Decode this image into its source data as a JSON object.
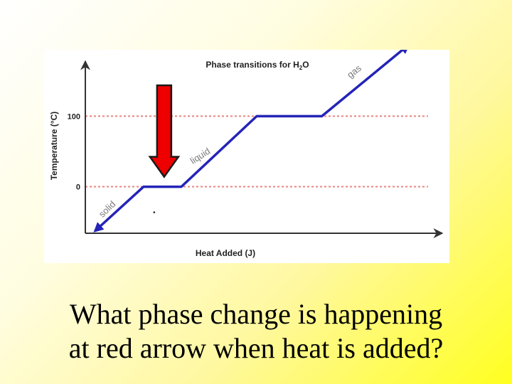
{
  "chart_data": {
    "type": "line",
    "title_parts": {
      "prefix": "Phase transitions for H",
      "sub": "2",
      "suffix": "O"
    },
    "xlabel": "Heat Added (J)",
    "ylabel": "Temperature (°C)",
    "yticks": [
      100,
      0
    ],
    "reference_lines": [
      100,
      0
    ],
    "xlim": [
      0,
      100
    ],
    "ylim": [
      -66,
      170
    ],
    "series": [
      {
        "x": [
          3,
          17,
          28,
          50,
          69,
          94
        ],
        "y": [
          -62,
          0,
          0,
          100,
          100,
          200
        ]
      }
    ],
    "phase_labels": [
      {
        "text": "solid",
        "x": 7,
        "y": -35,
        "angle": -44
      },
      {
        "text": "liquid",
        "x": 34,
        "y": 40,
        "angle": -33
      },
      {
        "text": "gas",
        "x": 79,
        "y": 160,
        "angle": -38
      }
    ],
    "grid": false,
    "legend": "none"
  },
  "colors": {
    "line": "#2424b8",
    "reference_line": "#e8857e",
    "arrow": "#ee0000",
    "arrow_outline": "#1a1a1a",
    "text": "#222222"
  },
  "arrow_target": {
    "x": 23,
    "y": 0
  },
  "question": {
    "line1": "What phase change is happening",
    "line2": "at red arrow when heat is added?"
  }
}
